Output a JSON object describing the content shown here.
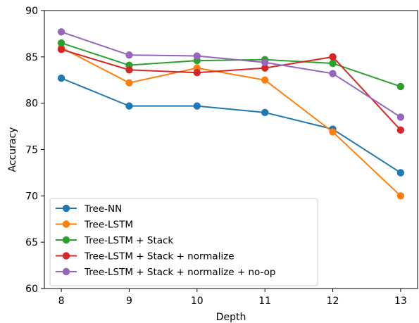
{
  "chart_data": {
    "type": "line",
    "xlabel": "Depth",
    "ylabel": "Accuracy",
    "x": [
      8,
      9,
      10,
      11,
      12,
      13
    ],
    "xlim": [
      7.75,
      13.25
    ],
    "ylim": [
      60,
      90
    ],
    "xticks": [
      "8",
      "9",
      "10",
      "11",
      "12",
      "13"
    ],
    "yticks": [
      "60",
      "65",
      "70",
      "75",
      "80",
      "85",
      "90"
    ],
    "grid": false,
    "legend_position": "lower-left",
    "series": [
      {
        "name": "Tree-NN",
        "color": "#1f77b4",
        "values": [
          82.7,
          79.7,
          79.7,
          79.0,
          77.2,
          72.5
        ]
      },
      {
        "name": "Tree-LSTM",
        "color": "#ff7f0e",
        "values": [
          86.0,
          82.2,
          83.8,
          82.5,
          76.9,
          70.0
        ]
      },
      {
        "name": "Tree-LSTM + Stack",
        "color": "#2ca02c",
        "values": [
          86.5,
          84.1,
          84.6,
          84.7,
          84.3,
          81.8
        ]
      },
      {
        "name": "Tree-LSTM + Stack + normalize",
        "color": "#d62728",
        "values": [
          85.8,
          83.6,
          83.3,
          83.8,
          85.0,
          77.1
        ]
      },
      {
        "name": "Tree-LSTM + Stack + normalize + no-op",
        "color": "#9467bd",
        "values": [
          87.7,
          85.2,
          85.1,
          84.4,
          83.2,
          78.5
        ]
      }
    ]
  }
}
